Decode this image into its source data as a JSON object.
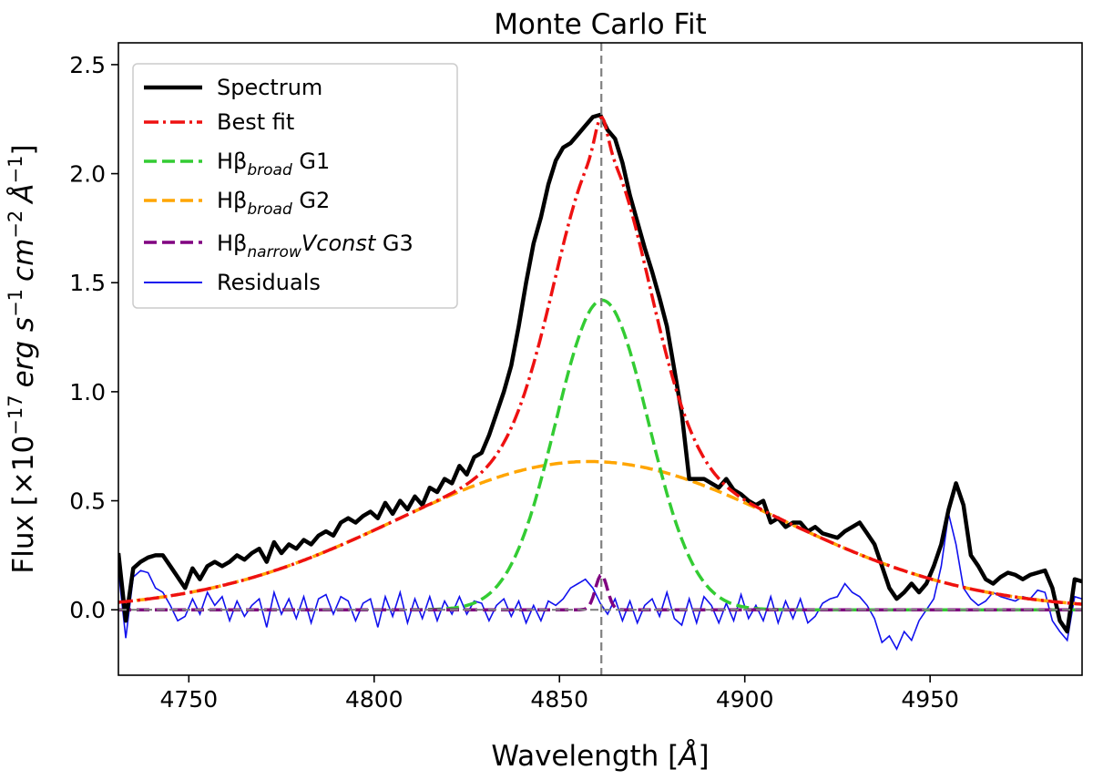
{
  "chart_data": {
    "type": "line",
    "title": "Monte Carlo Fit",
    "xlabel_main": "Wavelength [",
    "xlabel_unit": "Å",
    "xlabel_end": "]",
    "ylabel_prefix": "Flux [×10",
    "ylabel_exp": "−17",
    "ylabel_units": "erg s",
    "ylabel_units2": "cm",
    "ylabel_units3": "Å",
    "ylabel_neg1": "−1",
    "ylabel_neg2": "−2",
    "ylabel_end": "]",
    "xlim": [
      4731,
      4991
    ],
    "ylim": [
      -0.3,
      2.6
    ],
    "xticks": [
      4750,
      4800,
      4850,
      4900,
      4950
    ],
    "xtick_labels": [
      "4750",
      "4800",
      "4850",
      "4900",
      "4950"
    ],
    "yticks": [
      0.0,
      0.5,
      1.0,
      1.5,
      2.0,
      2.5
    ],
    "ytick_labels": [
      "0.0",
      "0.5",
      "1.0",
      "1.5",
      "2.0",
      "2.5"
    ],
    "vline_x": 4861.3,
    "hline_y": 0.0,
    "colors": {
      "spectrum": "#000000",
      "best_fit": "#ee1111",
      "g1": "#33cc33",
      "g2": "#ffa500",
      "g3": "#800080",
      "residuals": "#1111ee",
      "guide": "#808080"
    },
    "components": {
      "g1": {
        "amp": 1.42,
        "center": 4861.5,
        "sigma": 12.5
      },
      "g2": {
        "amp": 0.68,
        "center": 4858.0,
        "sigma": 52.0
      },
      "g3": {
        "amp": 0.16,
        "center": 4861.3,
        "sigma": 1.6
      }
    },
    "spectrum": {
      "x": [
        4731,
        4733,
        4735,
        4737,
        4739,
        4741,
        4743,
        4745,
        4747,
        4749,
        4751,
        4753,
        4755,
        4757,
        4759,
        4761,
        4763,
        4765,
        4767,
        4769,
        4771,
        4773,
        4775,
        4777,
        4779,
        4781,
        4783,
        4785,
        4787,
        4789,
        4791,
        4793,
        4795,
        4797,
        4799,
        4801,
        4803,
        4805,
        4807,
        4809,
        4811,
        4813,
        4815,
        4817,
        4819,
        4821,
        4823,
        4825,
        4827,
        4829,
        4831,
        4833,
        4835,
        4837,
        4839,
        4841,
        4843,
        4845,
        4847,
        4849,
        4851,
        4853,
        4855,
        4857,
        4859,
        4861,
        4863,
        4865,
        4867,
        4869,
        4871,
        4873,
        4875,
        4877,
        4879,
        4881,
        4883,
        4885,
        4887,
        4889,
        4891,
        4893,
        4895,
        4897,
        4899,
        4901,
        4903,
        4905,
        4907,
        4909,
        4911,
        4913,
        4915,
        4917,
        4919,
        4921,
        4923,
        4925,
        4927,
        4929,
        4931,
        4933,
        4935,
        4937,
        4939,
        4941,
        4943,
        4945,
        4947,
        4949,
        4951,
        4953,
        4955,
        4957,
        4959,
        4961,
        4963,
        4965,
        4967,
        4969,
        4971,
        4973,
        4975,
        4977,
        4979,
        4981,
        4983,
        4985,
        4987,
        4989,
        4991
      ],
      "y": [
        0.26,
        -0.05,
        0.19,
        0.22,
        0.24,
        0.25,
        0.25,
        0.2,
        0.15,
        0.1,
        0.19,
        0.14,
        0.2,
        0.22,
        0.2,
        0.22,
        0.25,
        0.23,
        0.26,
        0.28,
        0.22,
        0.31,
        0.26,
        0.3,
        0.28,
        0.32,
        0.3,
        0.34,
        0.36,
        0.34,
        0.4,
        0.42,
        0.4,
        0.43,
        0.45,
        0.42,
        0.49,
        0.44,
        0.5,
        0.46,
        0.52,
        0.48,
        0.56,
        0.54,
        0.6,
        0.58,
        0.66,
        0.62,
        0.7,
        0.72,
        0.8,
        0.9,
        1.0,
        1.12,
        1.3,
        1.5,
        1.68,
        1.8,
        1.95,
        2.06,
        2.12,
        2.14,
        2.18,
        2.22,
        2.26,
        2.27,
        2.2,
        2.16,
        2.05,
        1.9,
        1.78,
        1.66,
        1.55,
        1.43,
        1.3,
        1.1,
        0.9,
        0.6,
        0.6,
        0.6,
        0.58,
        0.56,
        0.6,
        0.55,
        0.53,
        0.5,
        0.48,
        0.5,
        0.4,
        0.42,
        0.38,
        0.4,
        0.4,
        0.36,
        0.38,
        0.35,
        0.34,
        0.33,
        0.36,
        0.38,
        0.4,
        0.35,
        0.3,
        0.2,
        0.1,
        0.05,
        0.08,
        0.12,
        0.08,
        0.12,
        0.2,
        0.3,
        0.46,
        0.58,
        0.48,
        0.25,
        0.2,
        0.14,
        0.12,
        0.15,
        0.17,
        0.16,
        0.14,
        0.16,
        0.17,
        0.18,
        0.1,
        -0.05,
        -0.1,
        0.14,
        0.13
      ]
    },
    "residuals": {
      "x": [
        4731,
        4733,
        4735,
        4737,
        4739,
        4741,
        4743,
        4745,
        4747,
        4749,
        4751,
        4753,
        4755,
        4757,
        4759,
        4761,
        4763,
        4765,
        4767,
        4769,
        4771,
        4773,
        4775,
        4777,
        4779,
        4781,
        4783,
        4785,
        4787,
        4789,
        4791,
        4793,
        4795,
        4797,
        4799,
        4801,
        4803,
        4805,
        4807,
        4809,
        4811,
        4813,
        4815,
        4817,
        4819,
        4821,
        4823,
        4825,
        4827,
        4829,
        4831,
        4833,
        4835,
        4837,
        4839,
        4841,
        4843,
        4845,
        4847,
        4849,
        4851,
        4853,
        4855,
        4857,
        4859,
        4861,
        4863,
        4865,
        4867,
        4869,
        4871,
        4873,
        4875,
        4877,
        4879,
        4881,
        4883,
        4885,
        4887,
        4889,
        4891,
        4893,
        4895,
        4897,
        4899,
        4901,
        4903,
        4905,
        4907,
        4909,
        4911,
        4913,
        4915,
        4917,
        4919,
        4921,
        4923,
        4925,
        4927,
        4929,
        4931,
        4933,
        4935,
        4937,
        4939,
        4941,
        4943,
        4945,
        4947,
        4949,
        4951,
        4953,
        4955,
        4957,
        4959,
        4961,
        4963,
        4965,
        4967,
        4969,
        4971,
        4973,
        4975,
        4977,
        4979,
        4981,
        4983,
        4985,
        4987,
        4989,
        4991
      ],
      "y": [
        0.18,
        -0.13,
        0.15,
        0.18,
        0.17,
        0.1,
        0.08,
        0.02,
        -0.05,
        -0.03,
        0.05,
        -0.02,
        0.08,
        0.02,
        0.06,
        -0.05,
        0.04,
        -0.03,
        0.02,
        0.05,
        -0.08,
        0.08,
        -0.02,
        0.05,
        -0.04,
        0.06,
        -0.06,
        0.05,
        0.07,
        -0.02,
        0.06,
        0.04,
        -0.05,
        0.03,
        0.05,
        -0.08,
        0.06,
        -0.03,
        0.08,
        -0.06,
        0.05,
        -0.04,
        0.06,
        -0.05,
        0.04,
        -0.02,
        0.06,
        -0.02,
        0.04,
        0.03,
        -0.05,
        0.02,
        0.05,
        -0.03,
        0.04,
        -0.06,
        0.02,
        -0.05,
        0.04,
        0.02,
        0.05,
        0.1,
        0.12,
        0.14,
        0.1,
        0.03,
        -0.02,
        0.05,
        -0.05,
        0.04,
        -0.06,
        0.02,
        0.05,
        -0.03,
        0.08,
        -0.04,
        -0.07,
        0.05,
        -0.06,
        0.06,
        0.02,
        -0.06,
        0.03,
        -0.05,
        0.07,
        -0.04,
        0.02,
        -0.05,
        0.06,
        -0.06,
        0.04,
        -0.04,
        0.05,
        -0.06,
        -0.03,
        0.03,
        0.05,
        0.06,
        0.12,
        0.08,
        0.06,
        0.02,
        -0.04,
        -0.15,
        -0.12,
        -0.18,
        -0.1,
        -0.14,
        -0.05,
        0.0,
        0.05,
        0.2,
        0.44,
        0.3,
        0.1,
        0.05,
        0.02,
        0.04,
        0.08,
        0.06,
        0.05,
        0.04,
        0.06,
        0.05,
        0.09,
        0.08,
        -0.05,
        -0.1,
        -0.14,
        0.06,
        0.05
      ]
    },
    "legend": {
      "placement": "top-left",
      "entries": [
        {
          "key": "spectrum",
          "label": "Spectrum",
          "style": "solid-thick"
        },
        {
          "key": "best_fit",
          "label": "Best fit",
          "style": "dashdot"
        },
        {
          "key": "g1",
          "label_main": "Hβ",
          "label_sub": "broad",
          "label_end": " G1",
          "style": "dashed"
        },
        {
          "key": "g2",
          "label_main": "Hβ",
          "label_sub": "broad",
          "label_end": " G2",
          "style": "dashed"
        },
        {
          "key": "g3",
          "label_main": "Hβ",
          "label_sub": "narrow",
          "label_italic": "Vconst",
          "label_end": " G3",
          "style": "dashed"
        },
        {
          "key": "residuals",
          "label": "Residuals",
          "style": "solid-thin"
        }
      ]
    }
  }
}
